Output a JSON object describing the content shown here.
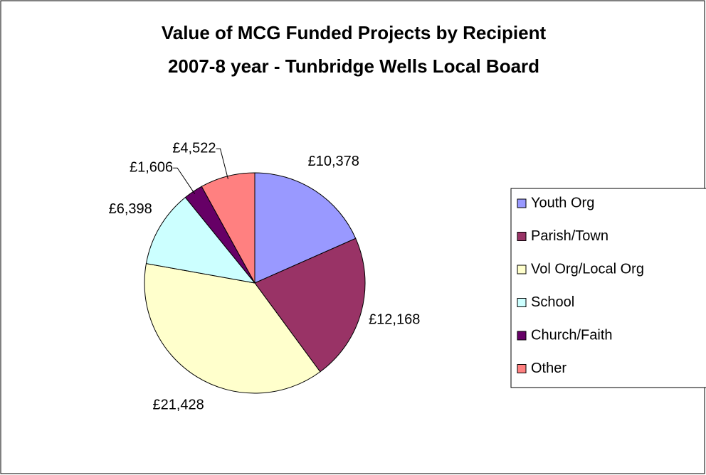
{
  "chart_data": {
    "type": "pie",
    "title": [
      "Value of MCG Funded Projects by Recipient",
      "2007-8 year - Tunbridge Wells Local Board"
    ],
    "categories": [
      "Youth Org",
      "Parish/Town",
      "Vol Org/Local Org",
      "School",
      "Church/Faith",
      "Other"
    ],
    "values": [
      10378,
      12168,
      21428,
      6398,
      1606,
      4522
    ],
    "value_labels": [
      "£10,378",
      "£12,168",
      "£21,428",
      "£6,398",
      "£1,606",
      "£4,522"
    ],
    "colors": [
      "#9999ff",
      "#993366",
      "#ffffcc",
      "#ccffff",
      "#660066",
      "#ff8080"
    ],
    "legend": "right"
  }
}
